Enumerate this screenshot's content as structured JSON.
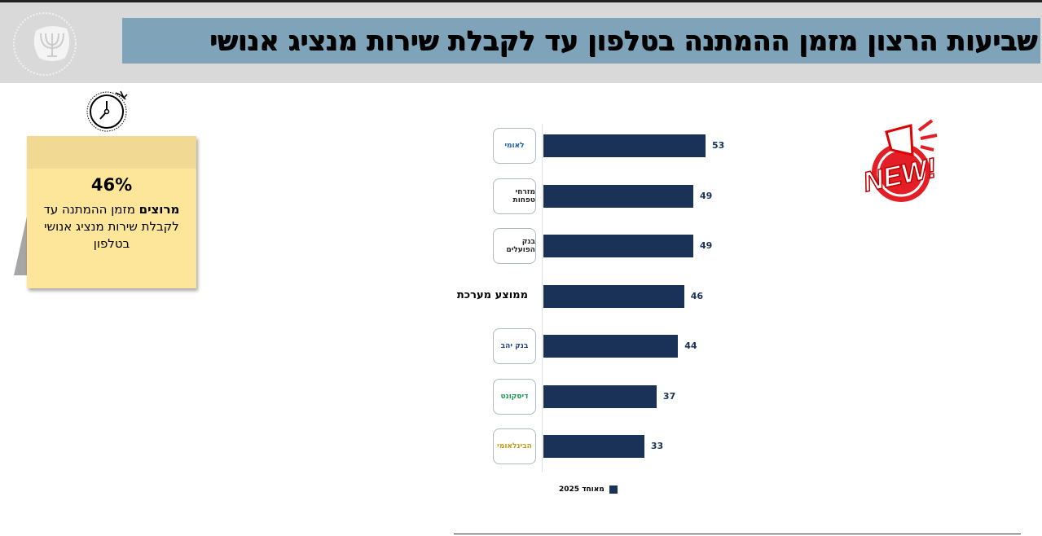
{
  "header": {
    "title": "שביעות הרצון מזמן ההמתנה בטלפון עד לקבלת שירות מנציג אנושי",
    "logo_text": "בנק ישראל BANK OF ISRAEL"
  },
  "note": {
    "percent": "46%",
    "text_bold": "מרוצים",
    "text_rest": " מזמן ההמתנה עד לקבלת שירות מנציג אנושי בטלפון"
  },
  "badge": {
    "label": "NEW!"
  },
  "colors": {
    "bar": "#1a3258",
    "title_bg": "#7fa3b8",
    "note": "#fde699"
  },
  "chart_data": {
    "type": "bar",
    "orientation": "horizontal",
    "categories": [
      "לאומי",
      "מזרחי טפחות",
      "בנק הפועלים",
      "ממוצע מערכת",
      "בנק יהב",
      "דיסקונט",
      "הבינלאומי"
    ],
    "series": [
      {
        "name": "מאוחד 2025",
        "values": [
          53,
          49,
          49,
          46,
          44,
          37,
          33
        ]
      }
    ],
    "legend": "bottom",
    "xlim": [
      0,
      53
    ]
  }
}
